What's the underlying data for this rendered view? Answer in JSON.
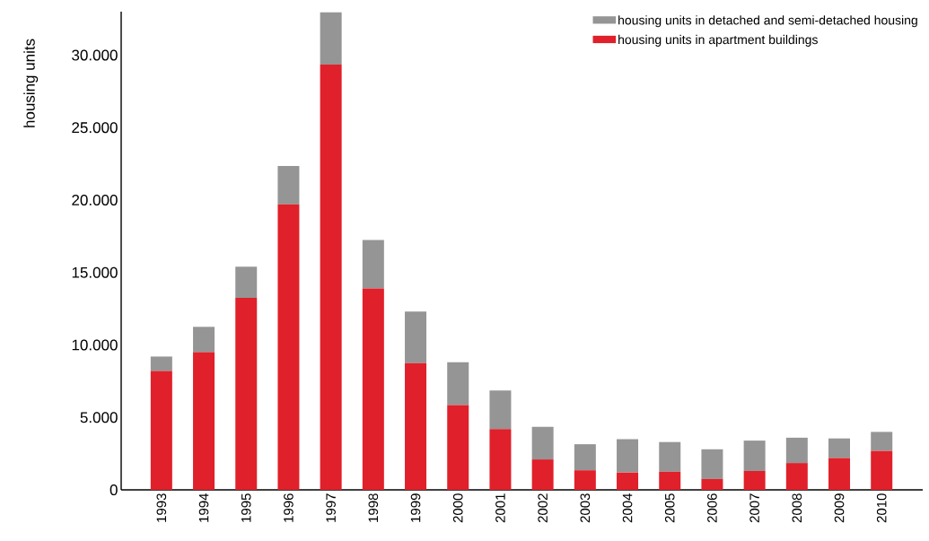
{
  "chart_data": {
    "type": "bar",
    "stacked": true,
    "ylabel": "housing units",
    "categories": [
      "1993",
      "1994",
      "1995",
      "1996",
      "1997",
      "1998",
      "1999",
      "2000",
      "2001",
      "2002",
      "2003",
      "2004",
      "2005",
      "2006",
      "2007",
      "2008",
      "2009",
      "2010"
    ],
    "series": [
      {
        "name": "housing units in apartment buildings",
        "color": "#e0202a",
        "values": [
          8200,
          9500,
          13250,
          19700,
          29350,
          13900,
          8750,
          5850,
          4200,
          2100,
          1350,
          1200,
          1250,
          750,
          1300,
          1850,
          2200,
          2700
        ]
      },
      {
        "name": "housing units in detached and semi-detached housing",
        "color": "#959595",
        "values": [
          1000,
          1750,
          2150,
          2650,
          3600,
          3350,
          3550,
          2950,
          2650,
          2250,
          1800,
          2300,
          2050,
          2050,
          2100,
          1750,
          1350,
          1300
        ]
      }
    ],
    "ylim": [
      0,
      33000
    ],
    "yticks": [
      0,
      {
        "value": 5000,
        "label": "5.000"
      },
      {
        "value": 10000,
        "label": "10.000"
      },
      {
        "value": 15000,
        "label": "15.000"
      },
      {
        "value": 20000,
        "label": "20.000"
      },
      {
        "value": 25000,
        "label": "25.000"
      },
      {
        "value": 30000,
        "label": "30.000"
      }
    ],
    "grid": false,
    "legend": "top right"
  }
}
